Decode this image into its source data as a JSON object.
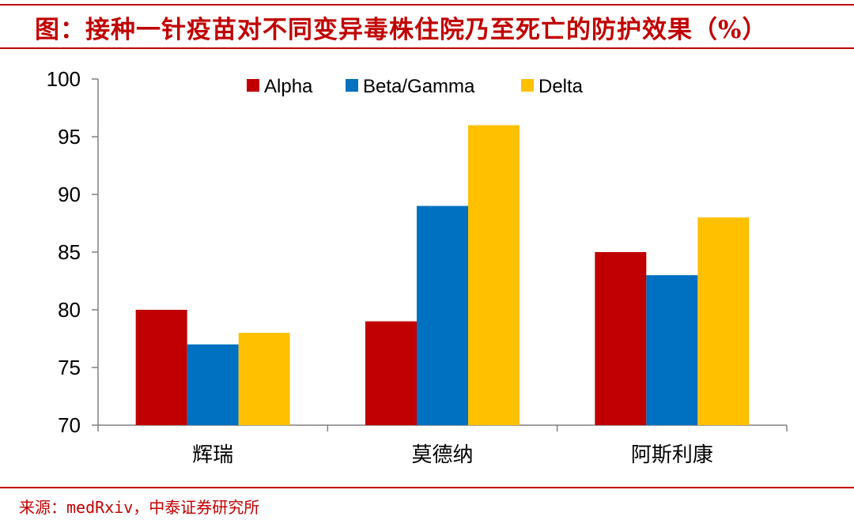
{
  "header": {
    "title": "图：接种一针疫苗对不同变异毒株住院乃至死亡的防护效果（%）"
  },
  "footer": {
    "source": "来源：medRxiv，中泰证券研究所"
  },
  "colors": {
    "accent": "#c00000",
    "axis": "#808080"
  },
  "chart_data": {
    "type": "bar",
    "title": "图：接种一针疫苗对不同变异毒株住院乃至死亡的防护效果（%）",
    "xlabel": "",
    "ylabel": "",
    "categories": [
      "辉瑞",
      "莫德纳",
      "阿斯利康"
    ],
    "series": [
      {
        "name": "Alpha",
        "values": [
          80,
          79,
          85
        ],
        "color": "#c00000"
      },
      {
        "name": "Beta/Gamma",
        "values": [
          77,
          89,
          83
        ],
        "color": "#0070c0"
      },
      {
        "name": "Delta",
        "values": [
          78,
          96,
          88
        ],
        "color": "#ffc000"
      }
    ],
    "ylim": [
      70,
      100
    ],
    "yticks": [
      70,
      75,
      80,
      85,
      90,
      95,
      100
    ],
    "grid": false,
    "legend": "top-center"
  }
}
